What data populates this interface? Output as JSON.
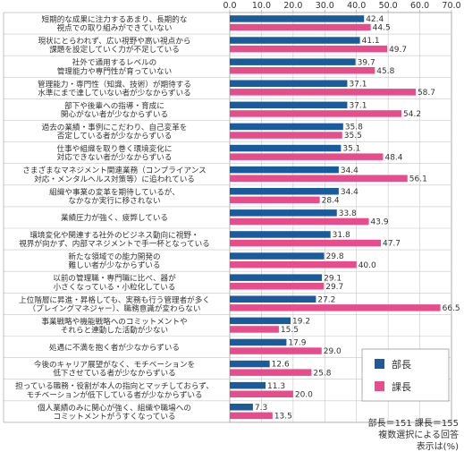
{
  "chart_data": {
    "type": "bar",
    "orientation": "horizontal",
    "xlim": [
      0,
      70
    ],
    "x_ticks": [
      "0.0",
      "10.0",
      "20.0",
      "30.0",
      "40.0",
      "50.0",
      "60.0",
      "70.0"
    ],
    "categories": [
      [
        "短期的な成果に注力するあまり、長期的な",
        "視点での取り組みができていない"
      ],
      [
        "現状にとらわれず、広い視野や高い視点から",
        "課題を設定していく力が不足している"
      ],
      [
        "社外で通用するレベルの",
        "管理能力や専門性が育っていない"
      ],
      [
        "管理能力・専門性（知識、技術）が期待する",
        "水準にまで達していない者が少なからずいる"
      ],
      [
        "部下や後輩への指導・育成に",
        "関心がない者が少なからずいる"
      ],
      [
        "過去の業績・事例にこだわり、自己変革を",
        "否定している者が少なからずいる"
      ],
      [
        "仕事や組織を取り巻く環境変化に",
        "対応できない者が少なからずいる"
      ],
      [
        "さまざまなマネジメント関連業務（コンプライアンス",
        "対応・メンタルヘルス対策等）に追われている"
      ],
      [
        "組織や事業の変革を期待しているが、",
        "なかなか実行に移されない"
      ],
      [
        "業績圧力が強く、疲弊している"
      ],
      [
        "環境変化や関連する社外のビジネス動向に視野・",
        "視界が向かず、内部マネジメントで手一杯となっている"
      ],
      [
        "新たな領域での能力開発の",
        "難しい者が少なからずいる"
      ],
      [
        "以前の管理職・専門職に比べ、器が",
        "小さくなっている・小粒化している"
      ],
      [
        "上位階層に昇進・昇格しても、実務も行う管理者が多く",
        "（プレイングマネジャー）、職務意識が変わらない"
      ],
      [
        "事業戦略や機能戦略へのコミットメントや",
        "それらと連動した活動が少ない"
      ],
      [
        "処遇に不満を抱く者が少なからずいる"
      ],
      [
        "今後のキャリア展望がなく、モチベーションを",
        "低下させている者が少なからずいる"
      ],
      [
        "担っている職務・役割が本人の指向とマッチしておらず、",
        "モチベーションが低下している者が少なからずいる"
      ],
      [
        "個人業績のみに関心が強く、組織や職場への",
        "コミットメントがうすくなっている"
      ]
    ],
    "series": [
      {
        "name": "部長",
        "color": "#1a5b9b",
        "values": [
          42.4,
          41.1,
          39.7,
          37.1,
          37.1,
          35.8,
          35.1,
          34.4,
          34.4,
          33.8,
          31.8,
          29.8,
          29.1,
          27.2,
          19.2,
          17.9,
          12.6,
          11.3,
          7.3
        ]
      },
      {
        "name": "課長",
        "color": "#e64d8a",
        "values": [
          44.5,
          49.7,
          45.8,
          58.7,
          54.2,
          35.5,
          48.4,
          56.1,
          28.4,
          43.9,
          47.7,
          40.0,
          29.7,
          66.5,
          15.5,
          29.0,
          25.8,
          20.0,
          13.5
        ]
      }
    ],
    "legend_position": "bottom-right"
  },
  "notes": {
    "respondents": "部長＝151 課長＝155",
    "method": "複数選択による回答",
    "unit": "表示は(%)"
  }
}
